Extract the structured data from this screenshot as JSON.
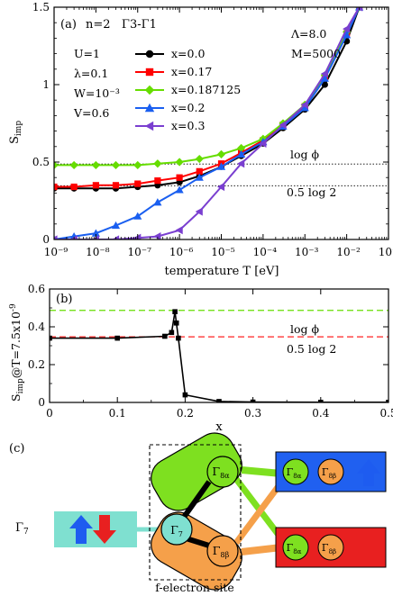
{
  "chart_data": [
    {
      "type": "line",
      "panel_label": "(a)",
      "panel_title": "n=2   Γ3-Γ1",
      "params_left": [
        "U=1",
        "λ=0.1",
        "W=10⁻³",
        "V=0.6"
      ],
      "params_right": [
        "Λ=8.0",
        "M=5000"
      ],
      "xlabel": "temperature T [eV]",
      "ylabel_main": "S",
      "ylabel_sub": "imp",
      "xscale": "log",
      "xlim": [
        1e-09,
        0.1
      ],
      "ylim": [
        0,
        1.5
      ],
      "xticks": [
        1e-09,
        1e-08,
        1e-07,
        1e-06,
        1e-05,
        0.0001,
        0.001,
        0.01,
        0.1
      ],
      "xtick_labels": [
        "10⁻⁹",
        "10⁻⁸",
        "10⁻⁷",
        "10⁻⁶",
        "10⁻⁵",
        "10⁻⁴",
        "10⁻³",
        "10⁻²",
        "10⁻¹"
      ],
      "yticks": [
        0,
        0.5,
        1,
        1.5
      ],
      "ytick_labels": [
        "0",
        "0.5",
        "1",
        "1.5"
      ],
      "reference_lines": [
        {
          "label": "log ϕ",
          "y": 0.487
        },
        {
          "label": "0.5 log 2",
          "y": 0.347
        }
      ],
      "legend_position": "top-center",
      "series": [
        {
          "name": "x=0.0",
          "color": "#000000",
          "marker": "circle",
          "x": [
            1e-09,
            3e-09,
            1e-08,
            3e-08,
            1e-07,
            3e-07,
            1e-06,
            3e-06,
            1e-05,
            3e-05,
            0.0001,
            0.0003,
            0.001,
            0.003,
            0.01,
            0.02
          ],
          "y": [
            0.33,
            0.33,
            0.33,
            0.33,
            0.34,
            0.35,
            0.37,
            0.41,
            0.47,
            0.54,
            0.62,
            0.72,
            0.84,
            1.0,
            1.28,
            1.5
          ]
        },
        {
          "name": "x=0.17",
          "color": "#ff0000",
          "marker": "square",
          "x": [
            1e-09,
            3e-09,
            1e-08,
            3e-08,
            1e-07,
            3e-07,
            1e-06,
            3e-06,
            1e-05,
            3e-05,
            0.0001,
            0.0003,
            0.001,
            0.003,
            0.01,
            0.02
          ],
          "y": [
            0.34,
            0.34,
            0.35,
            0.35,
            0.36,
            0.38,
            0.4,
            0.44,
            0.49,
            0.56,
            0.64,
            0.74,
            0.86,
            1.05,
            1.33,
            1.5
          ]
        },
        {
          "name": "x=0.187125",
          "color": "#66dd00",
          "marker": "diamond",
          "x": [
            1e-09,
            3e-09,
            1e-08,
            3e-08,
            1e-07,
            3e-07,
            1e-06,
            3e-06,
            1e-05,
            3e-05,
            0.0001,
            0.0003,
            0.001,
            0.003,
            0.01,
            0.02
          ],
          "y": [
            0.48,
            0.48,
            0.48,
            0.48,
            0.48,
            0.49,
            0.5,
            0.52,
            0.55,
            0.59,
            0.65,
            0.75,
            0.87,
            1.06,
            1.34,
            1.5
          ]
        },
        {
          "name": "x=0.2",
          "color": "#1a5ff0",
          "marker": "triangle-up",
          "x": [
            1e-09,
            3e-09,
            1e-08,
            3e-08,
            1e-07,
            3e-07,
            1e-06,
            3e-06,
            1e-05,
            3e-05,
            0.0001,
            0.0003,
            0.001,
            0.003,
            0.01,
            0.02
          ],
          "y": [
            0.0,
            0.02,
            0.04,
            0.09,
            0.15,
            0.24,
            0.32,
            0.4,
            0.47,
            0.55,
            0.63,
            0.73,
            0.85,
            1.04,
            1.32,
            1.5
          ]
        },
        {
          "name": "x=0.3",
          "color": "#7a3fd0",
          "marker": "triangle-left",
          "x": [
            1e-09,
            3e-09,
            1e-08,
            3e-08,
            1e-07,
            3e-07,
            1e-06,
            3e-06,
            1e-05,
            3e-05,
            0.0001,
            0.0003,
            0.001,
            0.003,
            0.01,
            0.02
          ],
          "y": [
            0.0,
            0.0,
            0.0,
            0.0,
            0.01,
            0.02,
            0.06,
            0.18,
            0.34,
            0.49,
            0.62,
            0.74,
            0.87,
            1.07,
            1.36,
            1.5
          ]
        }
      ]
    },
    {
      "type": "line",
      "panel_label": "(b)",
      "xlabel": "x",
      "ylabel_main": "S",
      "ylabel_sub": "imp",
      "ylabel_suffix": "@T=7.5x10",
      "ylabel_exp": "-9",
      "xlim": [
        0,
        0.5
      ],
      "ylim": [
        0,
        0.6
      ],
      "xticks": [
        0,
        0.1,
        0.2,
        0.3,
        0.4,
        0.5
      ],
      "xtick_labels": [
        "0",
        "0.1",
        "0.2",
        "0.3",
        "0.4",
        "0.5"
      ],
      "yticks": [
        0,
        0.2,
        0.4,
        0.6
      ],
      "ytick_labels": [
        "0",
        "0.2",
        "0.4",
        "0.6"
      ],
      "reference_lines": [
        {
          "label": "log ϕ",
          "y": 0.487,
          "color": "#66dd00"
        },
        {
          "label": "0.5 log 2",
          "y": 0.347,
          "color": "#ff2020"
        }
      ],
      "series": [
        {
          "name": "",
          "color": "#000000",
          "marker": "square",
          "x": [
            0.0,
            0.1,
            0.17,
            0.18,
            0.185,
            0.187125,
            0.19,
            0.2,
            0.25,
            0.3,
            0.4,
            0.5
          ],
          "y": [
            0.34,
            0.34,
            0.35,
            0.37,
            0.48,
            0.42,
            0.34,
            0.04,
            0.005,
            0.002,
            0.001,
            0.001
          ]
        }
      ]
    }
  ],
  "diagram": {
    "panel_label": "(c)",
    "gamma7": "Γ",
    "gamma7_sub": "7",
    "site_label": "f-electron site",
    "node_g7": "Γ",
    "node_g7_sub": "7",
    "node_g8a": "Γ",
    "node_g8a_sub": "8α",
    "node_g8b": "Γ",
    "node_g8b_sub": "8β",
    "bath_a": "Γ",
    "bath_a_sub": "8α",
    "bath_b": "Γ",
    "bath_b_sub": "8β",
    "colors": {
      "cyan": "#7fe0d0",
      "green": "#7ee020",
      "orange": "#f5a04a",
      "blue_box": "#2060f0",
      "red_box": "#e82020",
      "blue_arrow": "#1e5cf0",
      "red_arrow": "#e82020"
    }
  }
}
